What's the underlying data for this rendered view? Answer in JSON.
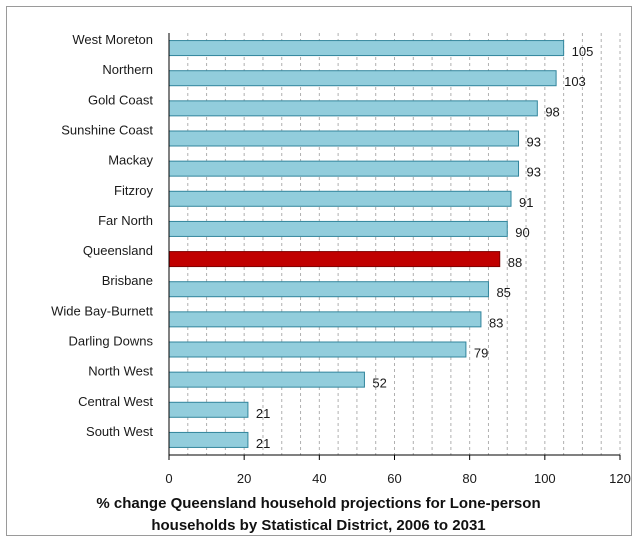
{
  "chart_data": {
    "type": "bar",
    "orientation": "horizontal",
    "categories": [
      "West Moreton",
      "Northern",
      "Gold Coast",
      "Sunshine Coast",
      "Mackay",
      "Fitzroy",
      "Far North",
      "Queensland",
      "Brisbane",
      "Wide Bay-Burnett",
      "Darling Downs",
      "North West",
      "Central West",
      "South West"
    ],
    "values": [
      105,
      103,
      98,
      93,
      93,
      91,
      90,
      88,
      85,
      83,
      79,
      52,
      21,
      21
    ],
    "data_labels": [
      "105",
      "103",
      "98",
      "93",
      "93",
      "91",
      "90",
      "88",
      "85",
      "83",
      "79",
      "52",
      "21",
      "21"
    ],
    "xticks": [
      "0",
      "20",
      "40",
      "60",
      "80",
      "100",
      "120"
    ],
    "xlim": [
      0,
      120
    ],
    "xlabel_line1": "% change Queensland household projections for Lone-person",
    "xlabel_line2": "households by Statistical District, 2006 to 2031",
    "ylabel": "",
    "grid": "vertical dashed",
    "legend": "none",
    "highlight_category": "Queensland",
    "colors": {
      "bar": "#92cddc",
      "bar_edge": "#31859c",
      "highlight": "#c00000",
      "highlight_edge": "#7f0000",
      "grid": "#b0b0b0",
      "axis": "#000000"
    }
  }
}
